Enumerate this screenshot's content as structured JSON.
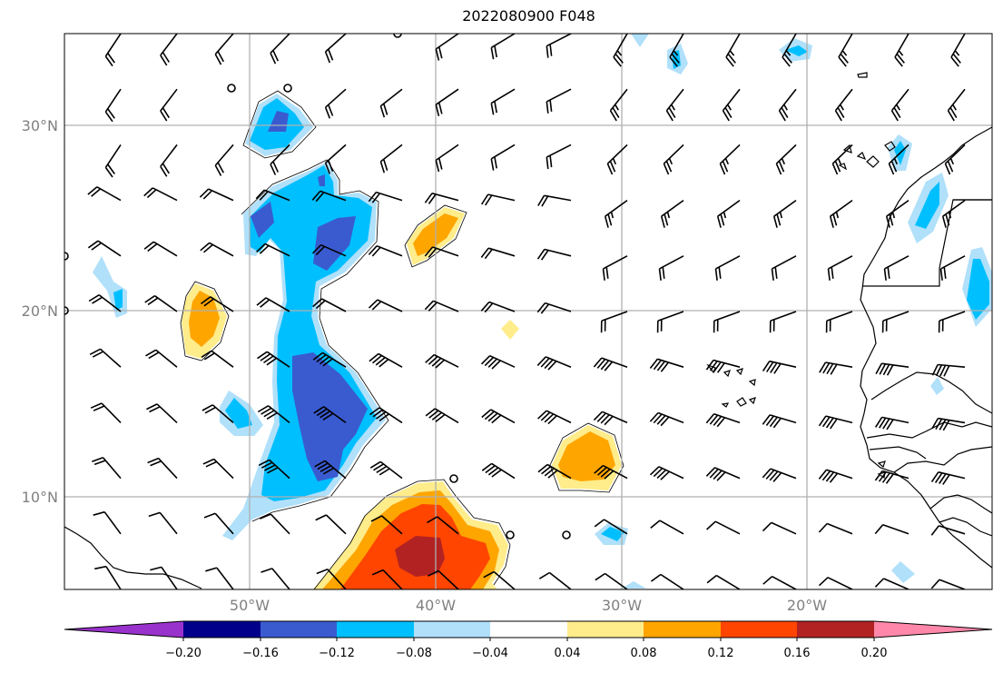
{
  "map": {
    "title": "2022080900 F048",
    "lat_labels": [
      "30°N",
      "20°N",
      "10°N"
    ],
    "lon_labels": [
      "50°W",
      "40°W",
      "30°W",
      "20°W"
    ]
  },
  "colorbar": {
    "tick_labels": [
      "−0.20",
      "−0.16",
      "−0.12",
      "−0.08",
      "−0.04",
      "0.04",
      "0.08",
      "0.12",
      "0.16",
      "0.20"
    ],
    "colors": [
      "#9932cc",
      "#00008b",
      "#3a5bd0",
      "#00bfff",
      "#b0e0fa",
      "#ffffff",
      "#ffec8b",
      "#ffa500",
      "#ff4500",
      "#b22222",
      "#ff88aa"
    ]
  },
  "colors": {
    "grid": "#b0b0b0",
    "coast": "#000000",
    "barb": "#000000"
  }
}
